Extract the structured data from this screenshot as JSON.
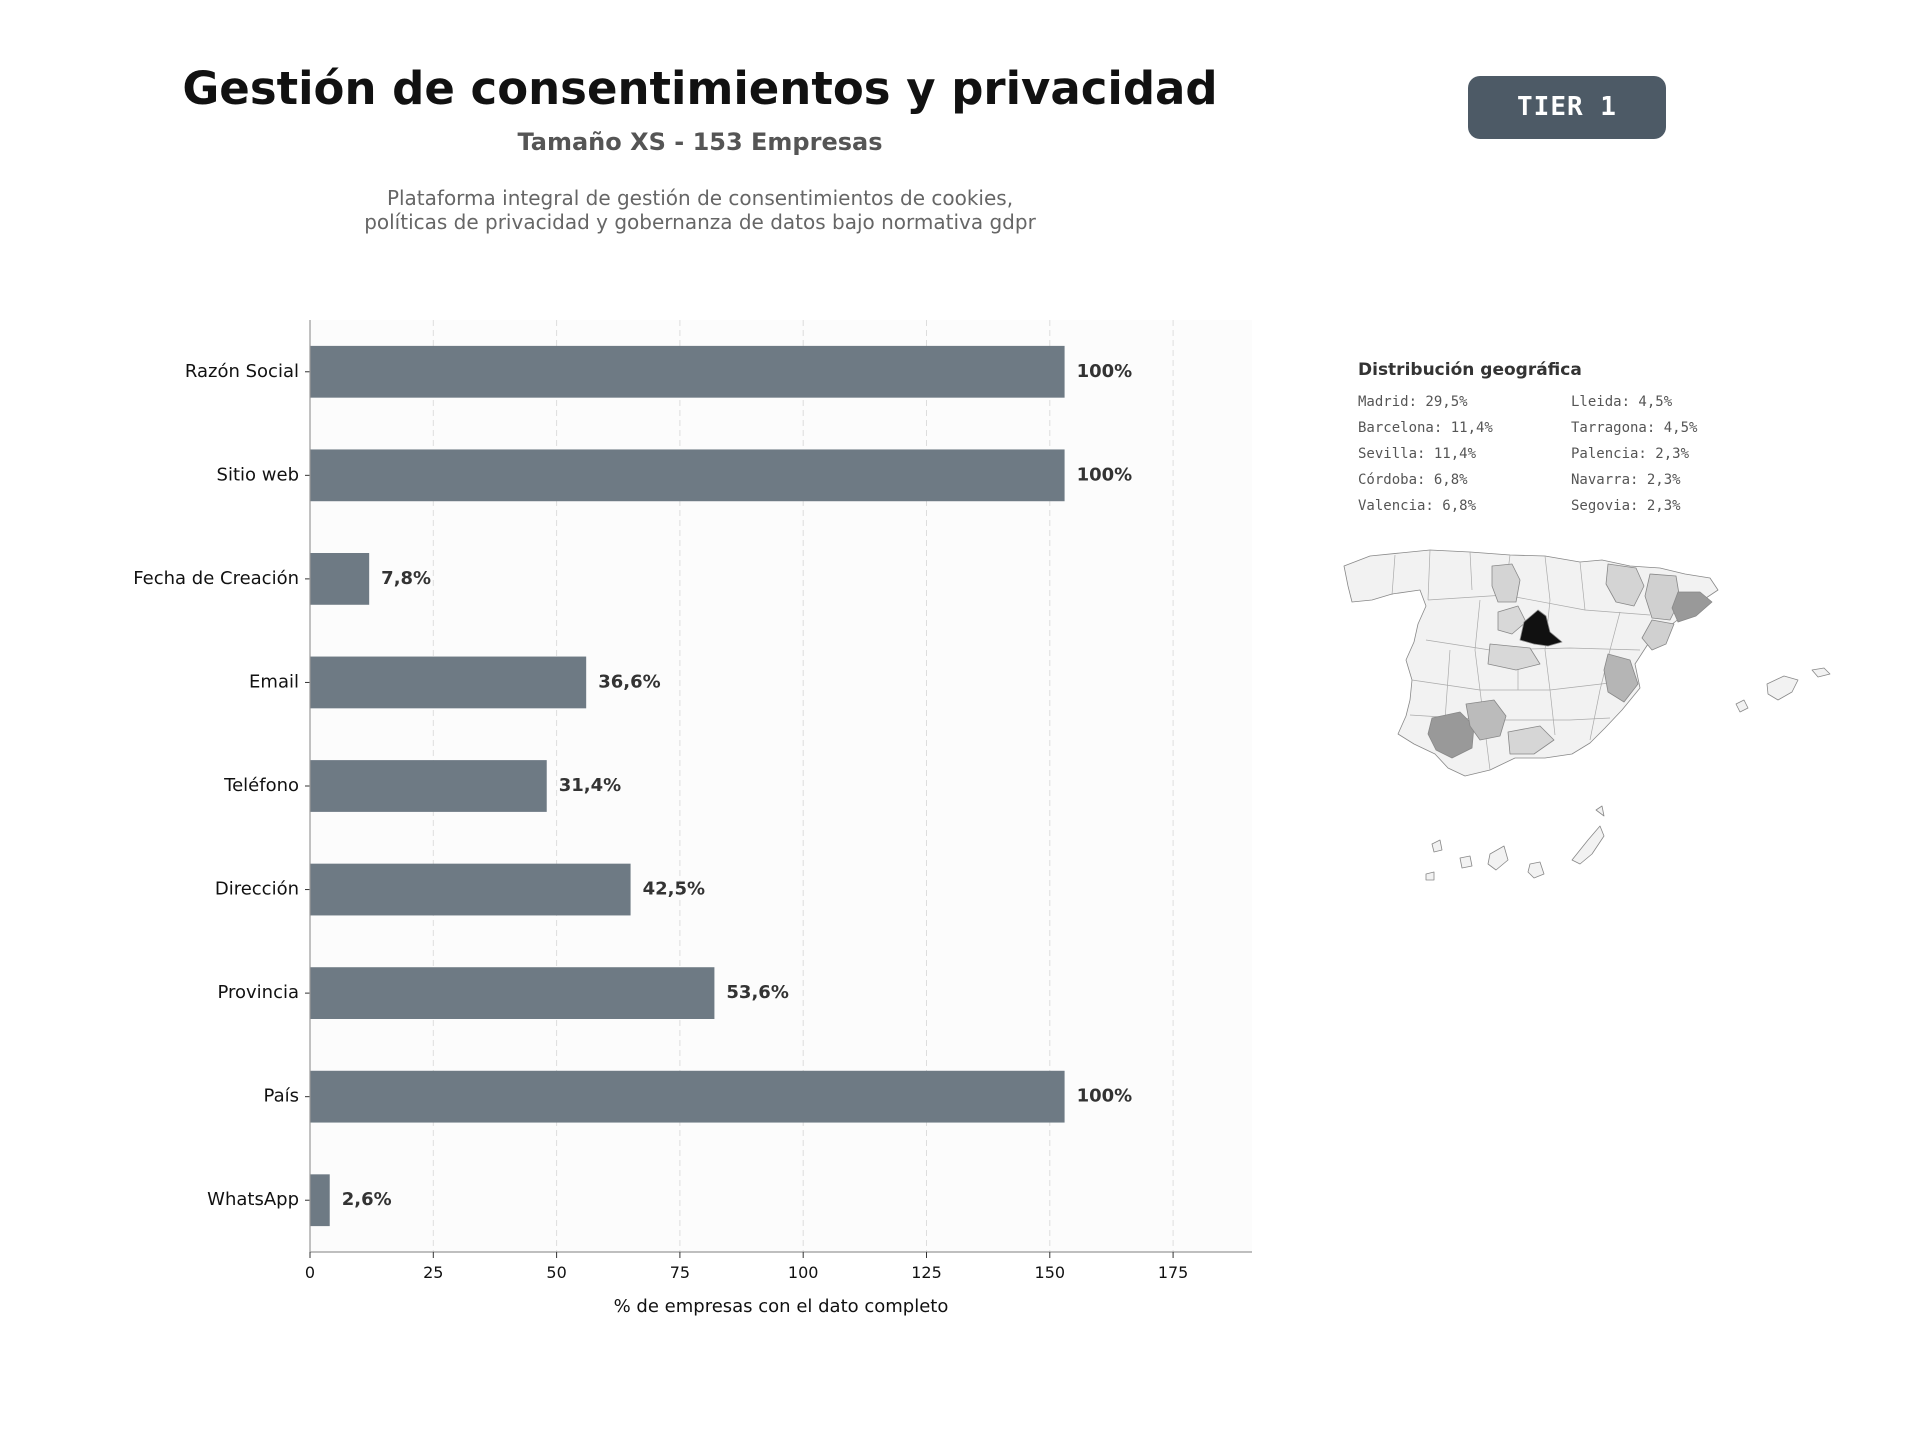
{
  "header": {
    "title": "Gestión de consentimientos y privacidad",
    "subtitle": "Tamaño XS - 153 Empresas",
    "description_line1": "Plataforma integral de gestión de consentimientos de cookies,",
    "description_line2": "políticas de privacidad y gobernanza de datos bajo normativa gdpr",
    "tier_label": "TIER 1"
  },
  "colors": {
    "bar": "#6e7a84",
    "badge": "#4d5a66",
    "map_max": "#111111",
    "map_default": "#f2f2f2"
  },
  "chart_data": {
    "type": "bar",
    "orientation": "horizontal",
    "categories": [
      "Razón Social",
      "Sitio web",
      "Fecha de Creación",
      "Email",
      "Teléfono",
      "Dirección",
      "Provincia",
      "País",
      "WhatsApp"
    ],
    "values": [
      153,
      153,
      12,
      56,
      48,
      65,
      82,
      153,
      4
    ],
    "data_labels": [
      "100%",
      "100%",
      "7,8%",
      "36,6%",
      "31,4%",
      "42,5%",
      "53,6%",
      "100%",
      "2,6%"
    ],
    "xlabel": "% de empresas con el dato completo",
    "ylabel": "",
    "xlim": [
      0,
      191
    ],
    "xticks": [
      0,
      25,
      50,
      75,
      100,
      125,
      150,
      175
    ],
    "grid": "vertical dashed"
  },
  "geo": {
    "title": "Distribución geográfica",
    "items": [
      {
        "text": "Madrid: 29,5%"
      },
      {
        "text": "Lleida: 4,5%"
      },
      {
        "text": "Barcelona: 11,4%"
      },
      {
        "text": "Tarragona: 4,5%"
      },
      {
        "text": "Sevilla: 11,4%"
      },
      {
        "text": "Palencia: 2,3%"
      },
      {
        "text": "Córdoba: 6,8%"
      },
      {
        "text": "Navarra: 2,3%"
      },
      {
        "text": "Valencia: 6,8%"
      },
      {
        "text": "Segovia: 2,3%"
      }
    ]
  }
}
